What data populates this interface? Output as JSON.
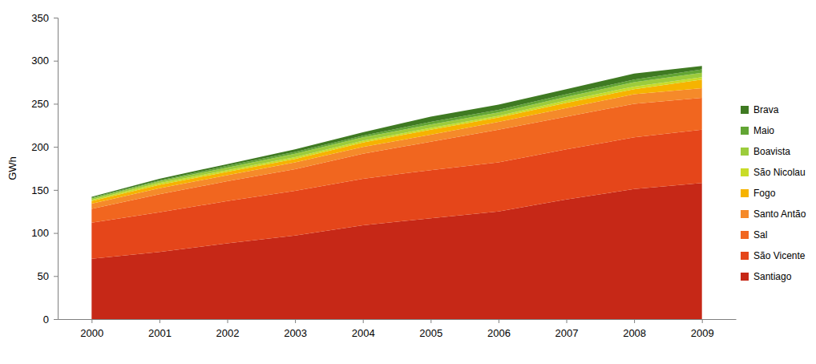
{
  "chart_data": {
    "type": "area",
    "stacked": true,
    "grid": false,
    "legend": "right",
    "y_label": "GWh",
    "categories": [
      "2000",
      "2001",
      "2002",
      "2003",
      "2004",
      "2005",
      "2006",
      "2007",
      "2008",
      "2009"
    ],
    "ylim": [
      0,
      350
    ],
    "yticks": [
      0,
      50,
      100,
      150,
      200,
      250,
      300,
      350
    ],
    "series": [
      {
        "name": "Santiago",
        "color": "#c62817",
        "values": [
          70,
          78,
          88,
          97,
          109,
          117,
          125,
          139,
          151,
          158
        ]
      },
      {
        "name": "São Vicente",
        "color": "#e5461a",
        "values": [
          42,
          46,
          49,
          52,
          54,
          56,
          57,
          58,
          60,
          62
        ]
      },
      {
        "name": "Sal",
        "color": "#f1661f",
        "values": [
          16,
          21,
          23,
          25,
          29,
          33,
          38,
          38,
          39,
          37
        ]
      },
      {
        "name": "Santo Antão",
        "color": "#f58a2a",
        "values": [
          6,
          7,
          7,
          8,
          8,
          8,
          9,
          10,
          11,
          11
        ]
      },
      {
        "name": "Fogo",
        "color": "#f6b300",
        "values": [
          3,
          4,
          4,
          4,
          5,
          6,
          5,
          6,
          6,
          10
        ]
      },
      {
        "name": "São Nicolau",
        "color": "#c9dc28",
        "values": [
          1.5,
          2,
          2,
          2,
          2,
          2,
          2,
          3,
          3,
          3
        ]
      },
      {
        "name": "Boavista",
        "color": "#9ccc3c",
        "values": [
          1.5,
          2,
          3,
          4,
          4,
          4,
          4,
          4,
          5,
          5
        ]
      },
      {
        "name": "Maio",
        "color": "#62a534",
        "values": [
          1,
          1,
          2,
          2,
          2,
          3,
          3,
          3,
          3,
          4
        ]
      },
      {
        "name": "Brava",
        "color": "#3f7a22",
        "values": [
          1,
          2,
          2,
          3,
          4,
          6,
          6,
          6,
          7,
          4
        ]
      }
    ]
  }
}
